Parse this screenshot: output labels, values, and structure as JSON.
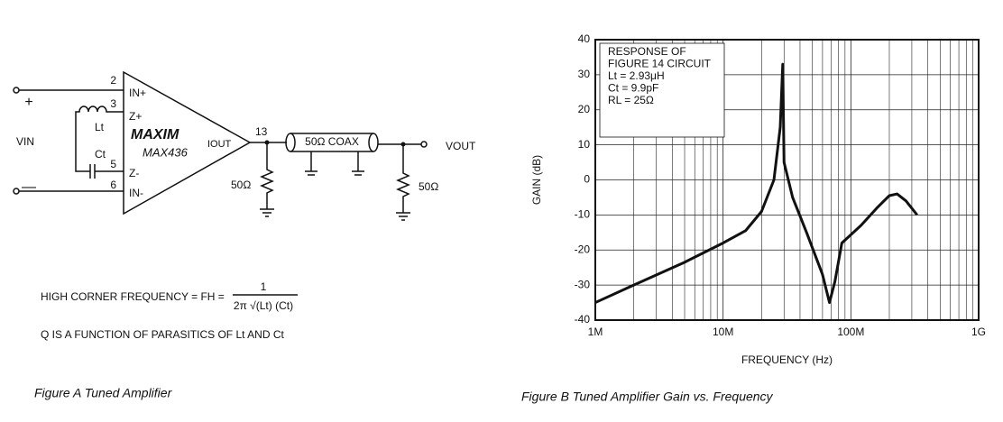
{
  "figure_a": {
    "pins": {
      "in_plus_num": "2",
      "in_plus": "IN+",
      "z_plus_num": "3",
      "z_plus": "Z+",
      "z_minus_num": "5",
      "z_minus": "Z-",
      "in_minus_num": "6",
      "in_minus": "IN-"
    },
    "plus": "+",
    "minus": "—",
    "vin": "VIN",
    "lt": "Lt",
    "ct": "Ct",
    "logo": "MAXIM",
    "part": "MAX436",
    "iout": "IOUT",
    "node": "13",
    "coax": "50Ω COAX",
    "vout": "VOUT",
    "r1": "50Ω",
    "r2": "50Ω",
    "formula_left": "HIGH CORNER FREQUENCY = FH =",
    "formula_num": "1",
    "formula_den": "2π √(Lt) (Ct)",
    "q_note": "Q IS A FUNCTION OF PARASITICS OF Lt AND Ct",
    "caption": "Figure A Tuned Amplifier"
  },
  "chart_data": {
    "type": "line",
    "caption": "Figure B Tuned Amplifier Gain vs. Frequency",
    "xlabel": "FREQUENCY (Hz)",
    "ylabel": "GAIN (dB)",
    "annotations": [
      "RESPONSE OF",
      "FIGURE 14 CIRCUIT",
      "Lt = 2.93μH",
      "Ct = 9.9pF",
      "RL = 25Ω"
    ],
    "xscale": "log",
    "grid": true,
    "minor_grid": true,
    "xlim": [
      1000000,
      1000000000
    ],
    "xticks": [
      {
        "value": 1000000,
        "label": "1M"
      },
      {
        "value": 10000000,
        "label": "10M"
      },
      {
        "value": 100000000,
        "label": "100M"
      },
      {
        "value": 1000000000,
        "label": "1G"
      }
    ],
    "ylim": [
      -40,
      40
    ],
    "yticks": [
      -40,
      -30,
      -20,
      -10,
      0,
      10,
      20,
      30,
      40
    ],
    "x": [
      1000000,
      2000000,
      5000000,
      10000000,
      15000000,
      20000000,
      25000000,
      28000000,
      29300000,
      30000000,
      35000000,
      45000000,
      60000000,
      68000000,
      75000000,
      85000000,
      120000000,
      160000000,
      200000000,
      230000000,
      270000000,
      330000000
    ],
    "series": [
      {
        "color": "#111111",
        "values": [
          -35,
          -30,
          -23.5,
          -18,
          -14.5,
          -9,
          0,
          15,
          33,
          5,
          -5,
          -15,
          -27,
          -35,
          -29,
          -18,
          -13,
          -8,
          -4.5,
          -4,
          -6,
          -10
        ]
      }
    ]
  }
}
